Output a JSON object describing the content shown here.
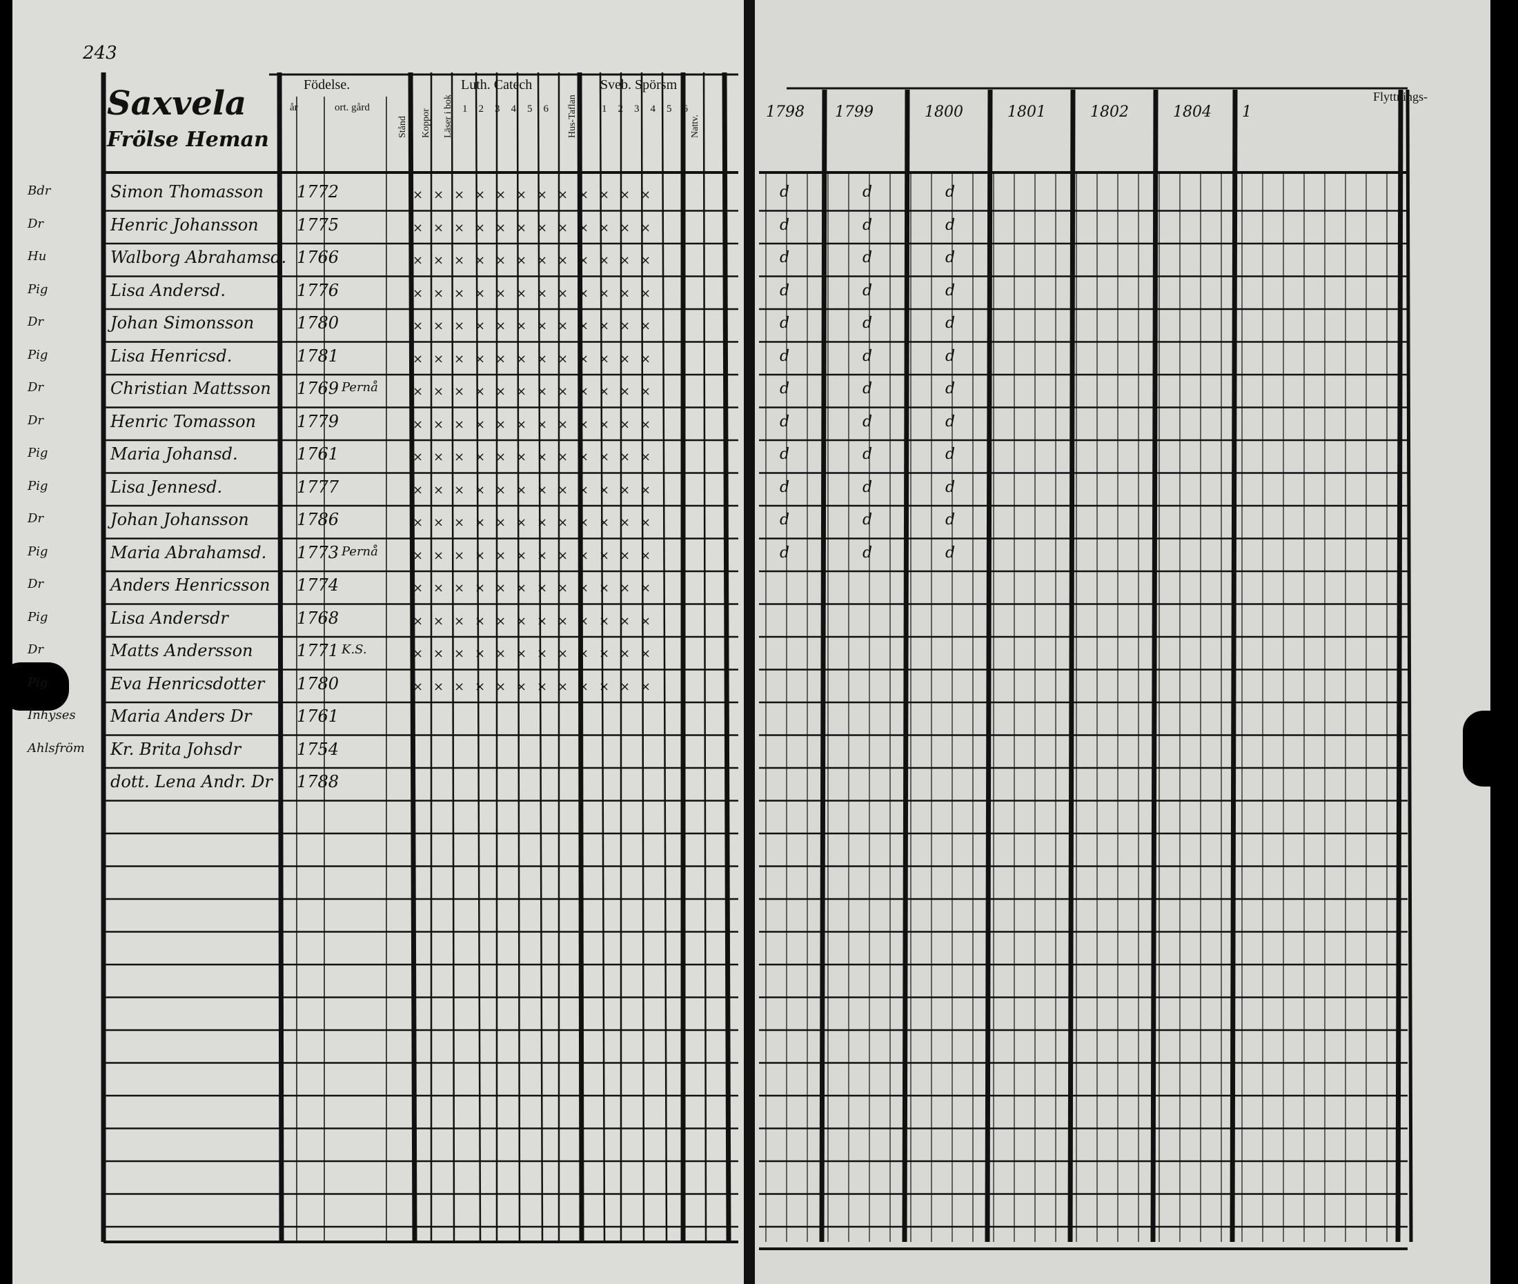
{
  "page_number": "243",
  "village": "Saxvela",
  "farm": "Frölse Heman",
  "left_headers": {
    "birth": "Födelse.",
    "birth_year": "år",
    "birth_place": "ort. gård",
    "marital": "Stånd",
    "smallpox": "Koppor",
    "literacy": "Läser i bok",
    "catechism": "Luth. Catech",
    "cat_cols": [
      "1",
      "2",
      "3",
      "4",
      "5",
      "6"
    ],
    "house": "Hus-Taflan",
    "sveb": "Sveb. Spörsm",
    "sveb_cols": [
      "1",
      "2",
      "3",
      "4",
      "5",
      "6"
    ],
    "communion": "Nattv."
  },
  "right_headers": {
    "years": [
      "1798",
      "1799",
      "1800",
      "1801",
      "1802",
      "1804",
      "1"
    ],
    "moving": "Flyttnings-"
  },
  "rows": [
    {
      "name": "Simon Thomasson",
      "birth": "1772",
      "note": "",
      "left_mark": "Bdr"
    },
    {
      "name": "Henric Johansson",
      "birth": "1775",
      "note": "",
      "left_mark": "Dr"
    },
    {
      "name": "Walborg Abrahamsd.",
      "birth": "1766",
      "note": "",
      "left_mark": "Hu"
    },
    {
      "name": "Lisa Andersd.",
      "birth": "1776",
      "note": "",
      "left_mark": "Pig"
    },
    {
      "name": "Johan Simonsson",
      "birth": "1780",
      "note": "",
      "left_mark": "Dr"
    },
    {
      "name": "Lisa Henricsd.",
      "birth": "1781",
      "note": "",
      "left_mark": "Pig"
    },
    {
      "name": "Christian Mattsson",
      "birth": "1769",
      "note": "Pernå",
      "left_mark": "Dr"
    },
    {
      "name": "Henric Tomasson",
      "birth": "1779",
      "note": "",
      "left_mark": "Dr"
    },
    {
      "name": "Maria Johansd.",
      "birth": "1761",
      "note": "",
      "left_mark": "Pig"
    },
    {
      "name": "Lisa Jennesd.",
      "birth": "1777",
      "note": "",
      "left_mark": "Pig"
    },
    {
      "name": "Johan Johansson",
      "birth": "1786",
      "note": "",
      "left_mark": "Dr"
    },
    {
      "name": "Maria Abrahamsd.",
      "birth": "1773",
      "note": "Pernå",
      "left_mark": "Pig"
    },
    {
      "name": "Anders Henricsson",
      "birth": "1774",
      "note": "",
      "left_mark": "Dr"
    },
    {
      "name": "Lisa Andersdr",
      "birth": "1768",
      "note": "",
      "left_mark": "Pig"
    },
    {
      "name": "Matts Andersson",
      "birth": "1771",
      "note": "K.S.",
      "left_mark": "Dr"
    },
    {
      "name": "Eva Henricsdotter",
      "birth": "1780",
      "note": "",
      "left_mark": "Pig"
    },
    {
      "name": "Maria Anders Dr",
      "birth": "1761",
      "note": "",
      "left_mark": "Inhyses"
    },
    {
      "name": "Kr. Brita Johsdr",
      "birth": "1754",
      "note": "",
      "left_mark": "Ahlsfröm"
    },
    {
      "name": "dott. Lena Andr. Dr",
      "birth": "1788",
      "note": "",
      "left_mark": ""
    }
  ]
}
